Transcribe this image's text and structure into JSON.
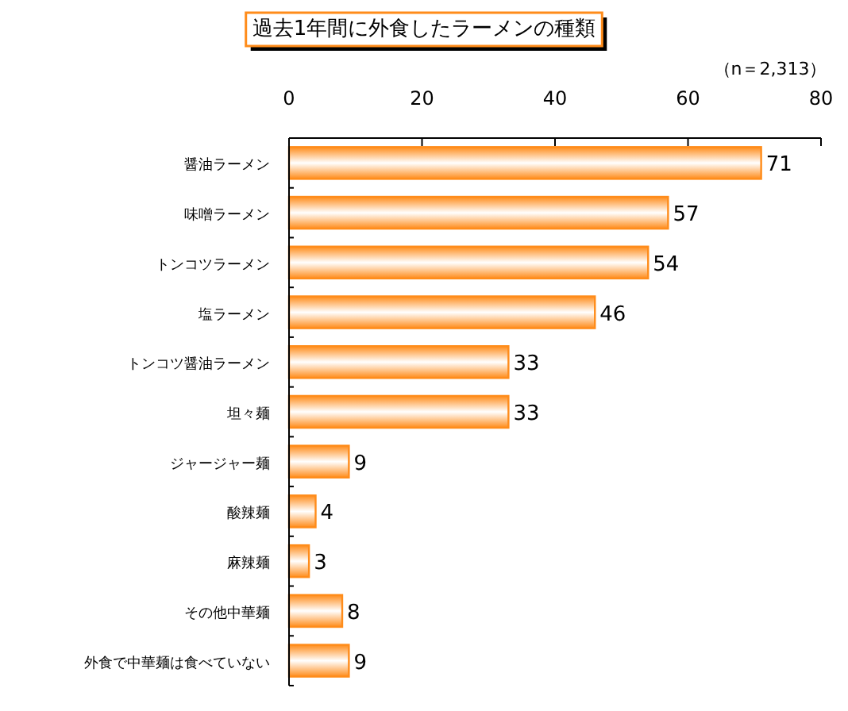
{
  "chart_data": {
    "type": "bar",
    "orientation": "horizontal",
    "title": "過去1年間に外食したラーメンの種類",
    "annotations": [
      "（n＝2,313）"
    ],
    "categories": [
      "醤油ラーメン",
      "味噌ラーメン",
      "トンコツラーメン",
      "塩ラーメン",
      "トンコツ醤油ラーメン",
      "坦々麺",
      "ジャージャー麺",
      "酸辣麺",
      "麻辣麺",
      "その他中華麺",
      "外食で中華麺は食べていない"
    ],
    "values": [
      71,
      57,
      54,
      46,
      33,
      33,
      9,
      4,
      3,
      8,
      9
    ],
    "color": "#ff8c1a",
    "xlim": [
      0,
      80
    ],
    "xticks": [
      0,
      20,
      40,
      60,
      80
    ],
    "data_labels": true
  }
}
